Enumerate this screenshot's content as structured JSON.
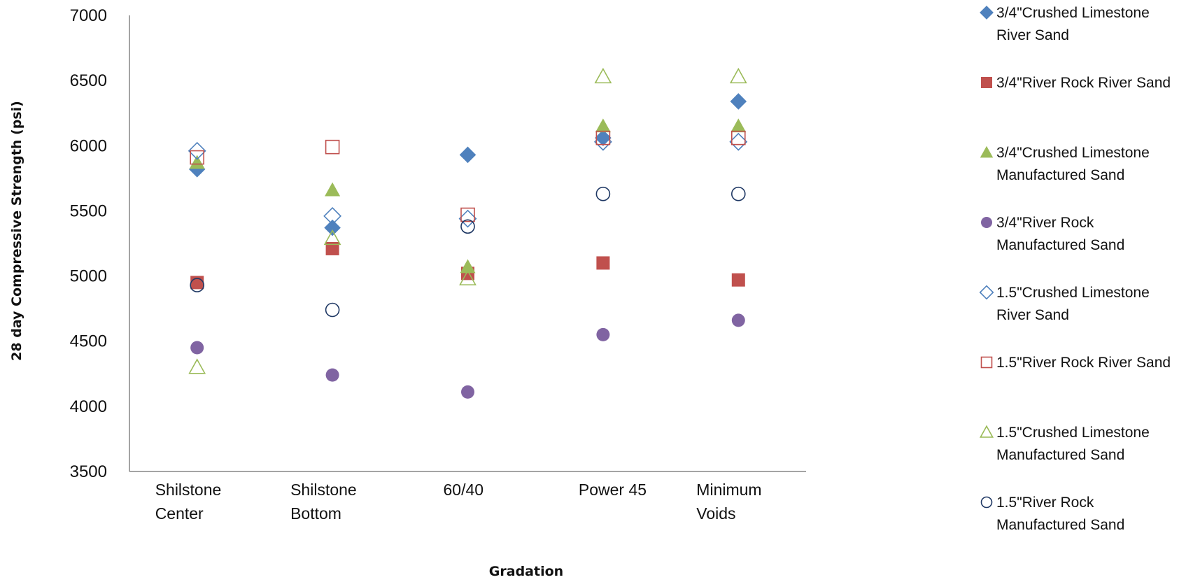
{
  "chart_data": {
    "type": "scatter",
    "title": "",
    "xlabel": "Gradation",
    "ylabel": "28 day Compressive Strength (psi)",
    "ylim": [
      3500,
      7000
    ],
    "yticks": [
      3500,
      4000,
      4500,
      5000,
      5500,
      6000,
      6500,
      7000
    ],
    "categories": [
      [
        "Shilstone",
        "Center"
      ],
      [
        "Shilstone",
        "Bottom"
      ],
      [
        "60/40"
      ],
      [
        "Power 45"
      ],
      [
        "Minimum",
        "Voids"
      ]
    ],
    "grid": false,
    "legend_position": "right",
    "series": [
      {
        "name": [
          "3/4\"Crushed Limestone",
          "River Sand"
        ],
        "marker": "diamond",
        "filled": true,
        "color": "#4F81BD",
        "values": [
          5820,
          5370,
          5930,
          6060,
          6340
        ]
      },
      {
        "name": [
          "3/4\"River Rock River Sand"
        ],
        "marker": "square",
        "filled": true,
        "color": "#C0504D",
        "values": [
          4950,
          5210,
          5020,
          5100,
          4970
        ]
      },
      {
        "name": [
          "3/4\"Crushed Limestone",
          "Manufactured Sand"
        ],
        "marker": "triangle",
        "filled": true,
        "color": "#9BBB59",
        "values": [
          5870,
          5660,
          5070,
          6150,
          6150
        ]
      },
      {
        "name": [
          "3/4\"River Rock",
          "Manufactured Sand"
        ],
        "marker": "circle",
        "filled": true,
        "color": "#8064A2",
        "values": [
          4450,
          4240,
          4110,
          4550,
          4660
        ]
      },
      {
        "name": [
          "1.5\"Crushed Limestone",
          "River Sand"
        ],
        "marker": "diamond",
        "filled": false,
        "color": "#4F81BD",
        "values": [
          5960,
          5460,
          5440,
          6030,
          6030
        ]
      },
      {
        "name": [
          "1.5\"River Rock River Sand"
        ],
        "marker": "square",
        "filled": false,
        "color": "#C0504D",
        "values": [
          5910,
          5990,
          5470,
          6060,
          6060
        ]
      },
      {
        "name": [
          "1.5\"Crushed Limestone",
          "Manufactured Sand"
        ],
        "marker": "triangle",
        "filled": false,
        "color": "#9BBB59",
        "values": [
          4300,
          5290,
          4980,
          6530,
          6530
        ]
      },
      {
        "name": [
          "1.5\"River Rock",
          "Manufactured Sand"
        ],
        "marker": "circle",
        "filled": false,
        "color": "#1F3864",
        "values": [
          4930,
          4740,
          5380,
          5630,
          5630
        ]
      }
    ]
  }
}
